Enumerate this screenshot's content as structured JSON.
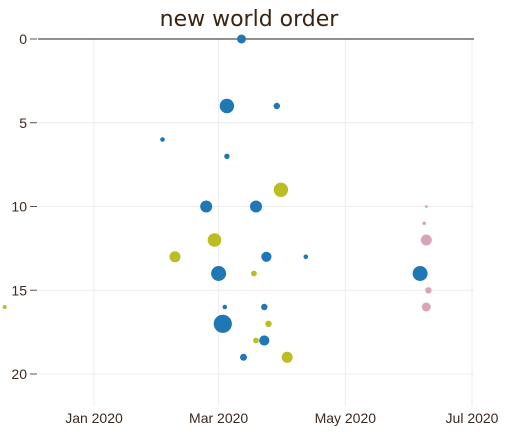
{
  "chart_data": {
    "type": "scatter",
    "title": "new world order",
    "xlabel": "",
    "ylabel": "",
    "x_axis": {
      "type": "date",
      "min": "2019-11-15",
      "max": "2020-07-01",
      "ticks": [
        "2020-01-01",
        "2020-03-01",
        "2020-05-01",
        "2020-07-01"
      ],
      "tick_labels": [
        "Jan 2020",
        "Mar 2020",
        "May 2020",
        "Jul 2020"
      ]
    },
    "y_axis": {
      "reversed": true,
      "min": 0,
      "max": 22,
      "ticks": [
        0,
        5,
        10,
        15,
        20
      ],
      "tick_labels": [
        "0",
        "5",
        "10",
        "15",
        "20"
      ]
    },
    "grid": true,
    "colors": {
      "blue": "#1f77b4",
      "olive": "#bcbd22",
      "pink": "#d9a4b9",
      "title": "#3a2410"
    },
    "series": [
      {
        "color": "#1f77b4",
        "points": [
          {
            "x": "2020-03-12",
            "y": 0,
            "size": 2
          },
          {
            "x": "2020-03-05",
            "y": 4,
            "size": 5
          },
          {
            "x": "2020-03-29",
            "y": 4,
            "size": 1
          },
          {
            "x": "2020-02-03",
            "y": 6,
            "size": 0.5
          },
          {
            "x": "2020-03-05",
            "y": 7,
            "size": 0.7
          },
          {
            "x": "2020-02-24",
            "y": 10,
            "size": 3.5
          },
          {
            "x": "2020-03-19",
            "y": 10,
            "size": 3.5
          },
          {
            "x": "2020-03-24",
            "y": 13,
            "size": 2.5
          },
          {
            "x": "2020-03-01",
            "y": 14,
            "size": 5.5
          },
          {
            "x": "2020-06-06",
            "y": 14,
            "size": 5.5
          },
          {
            "x": "2020-04-12",
            "y": 13,
            "size": 0.5
          },
          {
            "x": "2020-03-04",
            "y": 16,
            "size": 0.5
          },
          {
            "x": "2020-03-23",
            "y": 16,
            "size": 1
          },
          {
            "x": "2020-03-03",
            "y": 17,
            "size": 8
          },
          {
            "x": "2020-03-23",
            "y": 18,
            "size": 2.5
          },
          {
            "x": "2020-03-13",
            "y": 19,
            "size": 1.2
          }
        ]
      },
      {
        "color": "#bcbd22",
        "points": [
          {
            "x": "2020-03-31",
            "y": 9,
            "size": 5
          },
          {
            "x": "2020-02-28",
            "y": 12,
            "size": 4.5
          },
          {
            "x": "2020-02-09",
            "y": 13,
            "size": 3
          },
          {
            "x": "2020-03-18",
            "y": 14,
            "size": 0.8
          },
          {
            "x": "2019-11-19",
            "y": 16,
            "size": 0.4
          },
          {
            "x": "2020-03-25",
            "y": 17,
            "size": 1
          },
          {
            "x": "2020-03-19",
            "y": 18,
            "size": 0.8
          },
          {
            "x": "2020-04-03",
            "y": 19,
            "size": 3
          }
        ]
      },
      {
        "color": "#d9a4b9",
        "points": [
          {
            "x": "2020-06-09",
            "y": 12,
            "size": 3
          },
          {
            "x": "2020-06-08",
            "y": 11,
            "size": 0.3
          },
          {
            "x": "2020-06-09",
            "y": 10,
            "size": 0.2
          },
          {
            "x": "2020-06-10",
            "y": 15,
            "size": 1
          },
          {
            "x": "2020-06-09",
            "y": 16,
            "size": 2
          }
        ]
      }
    ]
  }
}
